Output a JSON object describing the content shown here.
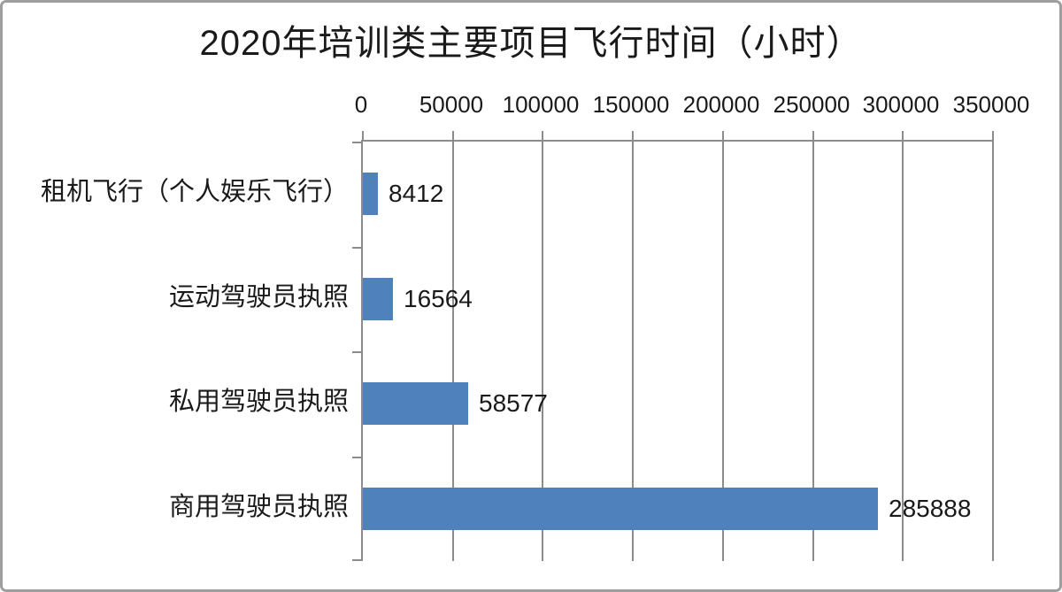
{
  "chart_data": {
    "type": "bar",
    "orientation": "horizontal",
    "title": "2020年培训类主要项目飞行时间（小时）",
    "categories": [
      "租机飞行（个人娱乐飞行）",
      "运动驾驶员执照",
      "私用驾驶员执照",
      "商用驾驶员执照"
    ],
    "values": [
      8412,
      16564,
      58577,
      285888
    ],
    "data_labels": [
      "8412",
      "16564",
      "58577",
      "285888"
    ],
    "xlabel": "",
    "ylabel": "",
    "xlim": [
      0,
      350000
    ],
    "x_ticks": [
      0,
      50000,
      100000,
      150000,
      200000,
      250000,
      300000,
      350000
    ],
    "x_tick_labels": [
      "0",
      "50000",
      "100000",
      "150000",
      "200000",
      "250000",
      "300000",
      "350000"
    ],
    "value_axis_position": "top",
    "grid": true,
    "legend": "none",
    "colors": {
      "bar": "#4F81BD",
      "grid": "#8C8C8C",
      "frame_border": "#9E9E9E",
      "text": "#1A1A1A",
      "background": "#FFFFFF"
    }
  }
}
